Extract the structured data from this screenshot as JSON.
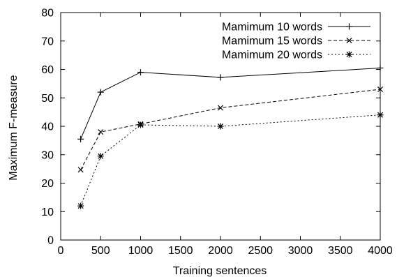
{
  "chart_data": {
    "type": "line",
    "xlabel": "Training sentences",
    "ylabel": "Maximum F-measure",
    "xlim": [
      0,
      4000
    ],
    "ylim": [
      0,
      80
    ],
    "xticks": [
      0,
      500,
      1000,
      1500,
      2000,
      2500,
      3000,
      3500,
      4000
    ],
    "yticks": [
      0,
      10,
      20,
      30,
      40,
      50,
      60,
      70,
      80
    ],
    "grid": false,
    "legend_position": "top-right",
    "series": [
      {
        "name": "Mamimum 10 words",
        "marker": "plus",
        "dash": "solid",
        "points": [
          [
            250,
            35.5
          ],
          [
            500,
            52
          ],
          [
            1000,
            59
          ],
          [
            2000,
            57.2
          ],
          [
            4000,
            60.5
          ]
        ]
      },
      {
        "name": "Mamimum 15 words",
        "marker": "cross",
        "dash": "dashed",
        "points": [
          [
            250,
            24.7
          ],
          [
            500,
            38
          ],
          [
            1000,
            40.8
          ],
          [
            2000,
            46.5
          ],
          [
            4000,
            53
          ]
        ]
      },
      {
        "name": "Mamimum 20 words",
        "marker": "star",
        "dash": "dotted",
        "points": [
          [
            250,
            12
          ],
          [
            500,
            29.5
          ],
          [
            1000,
            40.5
          ],
          [
            2000,
            40
          ],
          [
            4000,
            44
          ]
        ]
      }
    ]
  }
}
